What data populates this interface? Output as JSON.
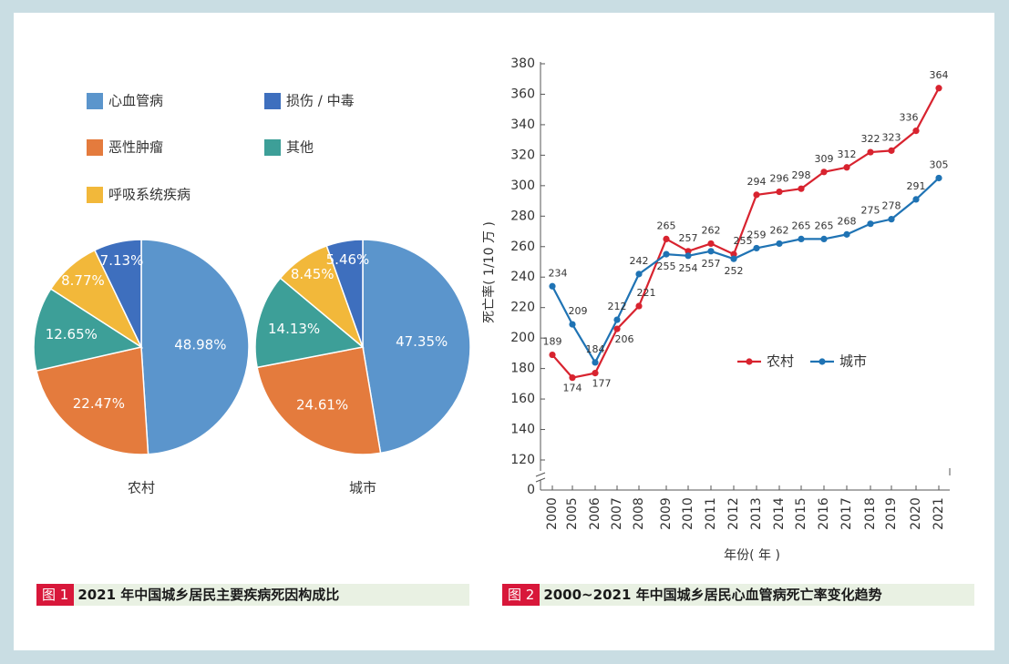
{
  "colors": {
    "cardio": "#5b95cc",
    "tumor": "#e47b3d",
    "resp": "#f2b83a",
    "injury": "#3e6fbe",
    "other": "#3d9f98",
    "rural": "#d8232f",
    "urban": "#1f73b4",
    "tag": "#d8173a"
  },
  "legend1": [
    {
      "label": "心血管病",
      "key": "cardio"
    },
    {
      "label": "损伤 / 中毒",
      "key": "injury"
    },
    {
      "label": "恶性肿瘤",
      "key": "tumor"
    },
    {
      "label": "其他",
      "key": "other"
    },
    {
      "label": "呼吸系统疾病",
      "key": "resp"
    }
  ],
  "legend2": [
    {
      "label": "农村",
      "key": "rural"
    },
    {
      "label": "城市",
      "key": "urban"
    }
  ],
  "caption1": {
    "tag": "图 1",
    "text": "2021 年中国城乡居民主要疾病死因构成比"
  },
  "caption2": {
    "tag": "图 2",
    "text": "2000~2021 年中国城乡居民心血管病死亡率变化趋势"
  },
  "chart_data": [
    {
      "type": "pie",
      "title": "农村",
      "slices": [
        {
          "name": "心血管病",
          "value": 48.98,
          "label": "48.98%"
        },
        {
          "name": "恶性肿瘤",
          "value": 22.47,
          "label": "22.47%"
        },
        {
          "name": "其他",
          "value": 12.65,
          "label": "12.65%"
        },
        {
          "name": "呼吸系统疾病",
          "value": 8.77,
          "label": "8.77%"
        },
        {
          "name": "损伤 / 中毒",
          "value": 7.13,
          "label": "7.13%"
        }
      ]
    },
    {
      "type": "pie",
      "title": "城市",
      "slices": [
        {
          "name": "心血管病",
          "value": 47.35,
          "label": "47.35%"
        },
        {
          "name": "恶性肿瘤",
          "value": 24.61,
          "label": "24.61%"
        },
        {
          "name": "其他",
          "value": 14.13,
          "label": "14.13%"
        },
        {
          "name": "呼吸系统疾病",
          "value": 8.45,
          "label": "8.45%"
        },
        {
          "name": "损伤 / 中毒",
          "value": 5.46,
          "label": "5.46%"
        }
      ]
    },
    {
      "type": "line",
      "xlabel": "年份( 年 )",
      "ylabel": "死亡率( 1/10 万 )",
      "categories": [
        "2000",
        "2005",
        "2006",
        "2007",
        "2008",
        "2009",
        "2010",
        "2011",
        "2012",
        "2013",
        "2014",
        "2015",
        "2016",
        "2017",
        "2018",
        "2019",
        "2020",
        "2021"
      ],
      "yticks": [
        "0",
        "120",
        "140",
        "160",
        "180",
        "200",
        "220",
        "240",
        "260",
        "280",
        "300",
        "320",
        "340",
        "360",
        "380"
      ],
      "ylim": [
        120,
        380
      ],
      "axis_break": true,
      "series": [
        {
          "name": "农村",
          "values": [
            189,
            174,
            177,
            206,
            221,
            265,
            257,
            262,
            255,
            294,
            296,
            298,
            309,
            312,
            322,
            323,
            336,
            364
          ],
          "labels": [
            "189",
            "174",
            "177",
            "206",
            "221",
            "265",
            "257",
            "262",
            "255",
            "294",
            "296",
            "298",
            "309",
            "312",
            "322",
            "323",
            "336",
            "364"
          ]
        },
        {
          "name": "城市",
          "values": [
            234,
            209,
            184,
            212,
            242,
            255,
            254,
            257,
            252,
            259,
            262,
            265,
            265,
            268,
            275,
            278,
            291,
            305
          ],
          "labels": [
            "234",
            "209",
            "184",
            "212",
            "242",
            "255",
            "254",
            "257",
            "252",
            "259",
            "262",
            "265",
            "265",
            "268",
            "275",
            "278",
            "291",
            "305"
          ]
        }
      ]
    }
  ]
}
